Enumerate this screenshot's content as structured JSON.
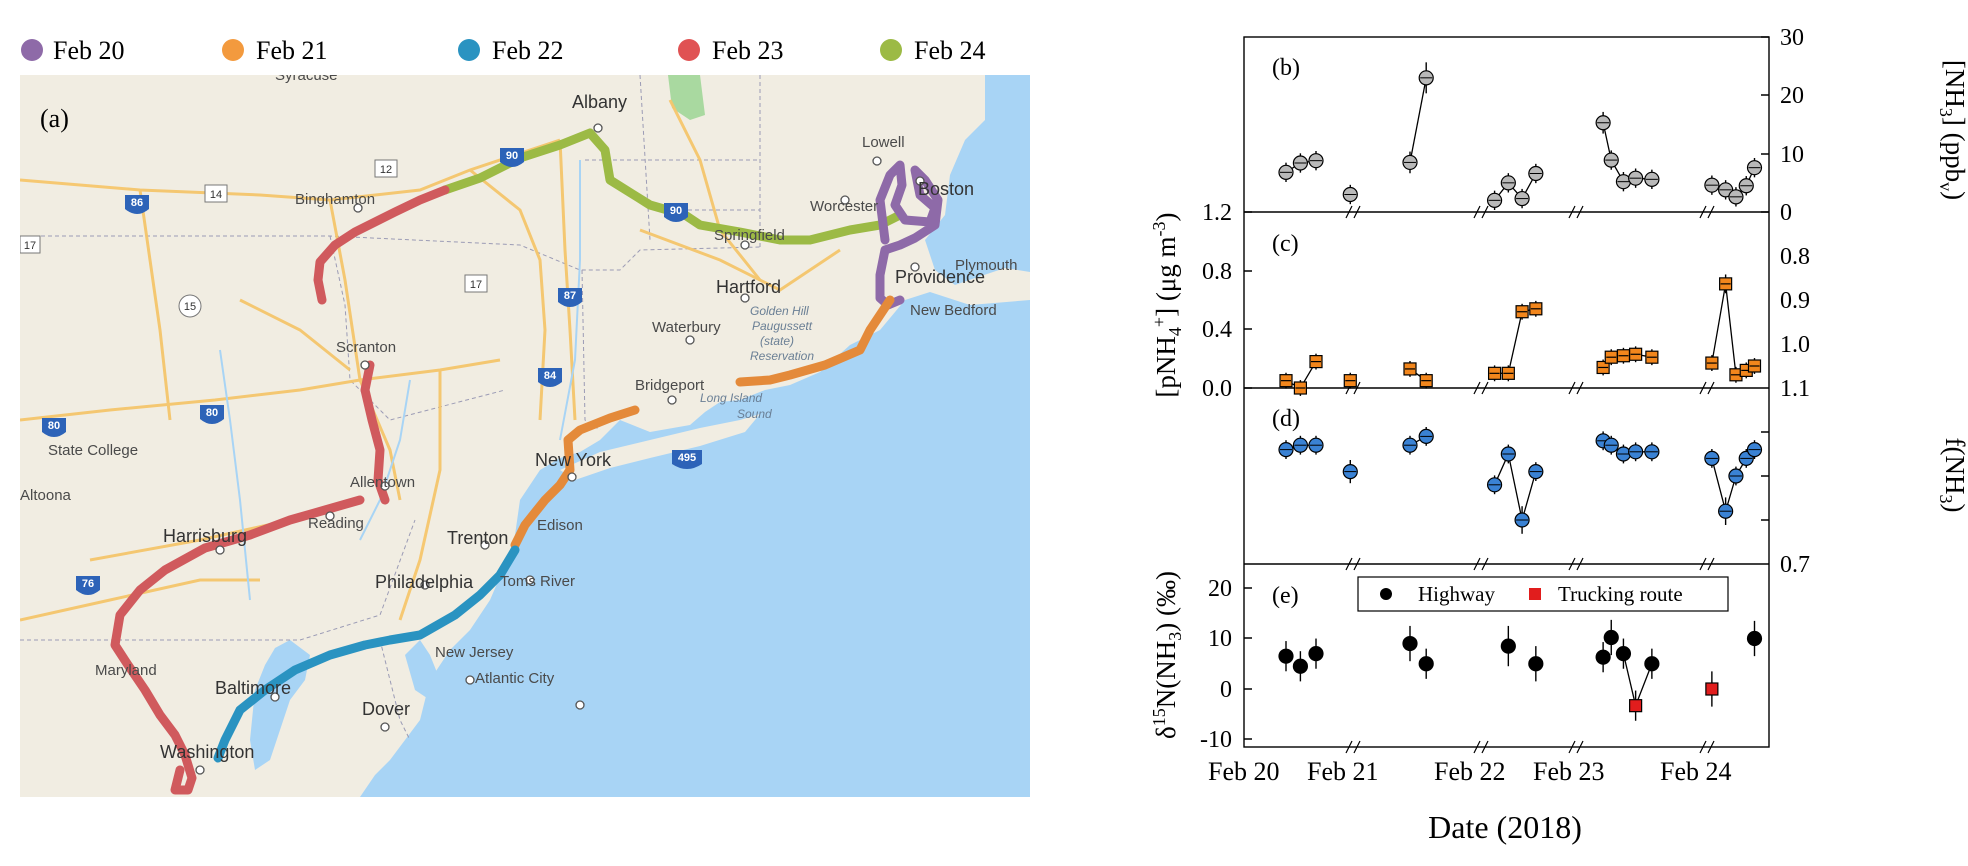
{
  "legend": [
    {
      "label": "Feb 20",
      "color": "#8e6aa8"
    },
    {
      "label": "Feb 21",
      "color": "#f39a3e"
    },
    {
      "label": "Feb 22",
      "color": "#2a93c1"
    },
    {
      "label": "Feb 23",
      "color": "#e05253"
    },
    {
      "label": "Feb 24",
      "color": "#9cba45"
    }
  ],
  "map": {
    "panel_label": "(a)",
    "cities": [
      {
        "name": "Syracuse"
      },
      {
        "name": "Albany"
      },
      {
        "name": "Lowell"
      },
      {
        "name": "Boston"
      },
      {
        "name": "Worcester"
      },
      {
        "name": "Springfield"
      },
      {
        "name": "Plymouth"
      },
      {
        "name": "Binghamton"
      },
      {
        "name": "Hartford"
      },
      {
        "name": "Providence"
      },
      {
        "name": "New Bedford"
      },
      {
        "name": "Waterbury"
      },
      {
        "name": "Scranton"
      },
      {
        "name": "Bridgeport"
      },
      {
        "name": "State College"
      },
      {
        "name": "New York"
      },
      {
        "name": "Allentown"
      },
      {
        "name": "Edison"
      },
      {
        "name": "Altoona"
      },
      {
        "name": "Reading"
      },
      {
        "name": "Harrisburg"
      },
      {
        "name": "Trenton"
      },
      {
        "name": "Philadelphia"
      },
      {
        "name": "Toms River"
      },
      {
        "name": "New Jersey"
      },
      {
        "name": "Maryland"
      },
      {
        "name": "Baltimore"
      },
      {
        "name": "Atlantic City"
      },
      {
        "name": "Dover"
      },
      {
        "name": "Washington"
      }
    ],
    "water_labels": [
      "Golden Hill",
      "Paugussett",
      "(state)",
      "Reservation",
      "Long Island",
      "Sound"
    ],
    "shields": [
      "86",
      "14",
      "12",
      "90",
      "17",
      "87",
      "90",
      "15",
      "17",
      "84",
      "80",
      "80",
      "495",
      "76"
    ]
  },
  "chart_data": [
    {
      "panel": "(b)",
      "type": "scatter",
      "ylabel": "[NH3] (ppbv)",
      "ylim": [
        0,
        30
      ],
      "yticks": [
        "0",
        "10",
        "20",
        "30"
      ],
      "axis_side": "right",
      "marker_color": "#b9b9b9",
      "groups": [
        {
          "segment": 0,
          "points": [
            {
              "x": 20.7,
              "y": 6.8,
              "err": 0.8
            },
            {
              "x": 20.82,
              "y": 8.4,
              "err": 0.8
            },
            {
              "x": 20.95,
              "y": 8.8,
              "err": 0.8
            }
          ]
        },
        {
          "segment": 0,
          "points": [
            {
              "x": 21.6,
              "y": 3.0,
              "err": 0.8
            }
          ]
        },
        {
          "segment": 1,
          "points": [
            {
              "x": 22.2,
              "y": 8.5,
              "err": 1.0
            },
            {
              "x": 22.38,
              "y": 23.0,
              "err": 1.8
            }
          ]
        },
        {
          "segment": 2,
          "points": [
            {
              "x": 23.05,
              "y": 2.0,
              "err": 0.8
            },
            {
              "x": 23.2,
              "y": 5.0,
              "err": 0.8
            },
            {
              "x": 23.35,
              "y": 2.3,
              "err": 0.8
            },
            {
              "x": 23.5,
              "y": 6.6,
              "err": 0.8
            }
          ]
        },
        {
          "segment": 3,
          "points": [
            {
              "x": 24.0,
              "y": 15.3,
              "err": 1.0
            },
            {
              "x": 24.1,
              "y": 8.9,
              "err": 0.8
            },
            {
              "x": 24.25,
              "y": 5.2,
              "err": 0.8
            },
            {
              "x": 24.4,
              "y": 5.8,
              "err": 0.8
            },
            {
              "x": 24.6,
              "y": 5.6,
              "err": 0.8
            }
          ]
        },
        {
          "segment": 4,
          "points": [
            {
              "x": 25.0,
              "y": 4.6,
              "err": 0.8
            },
            {
              "x": 25.2,
              "y": 3.8,
              "err": 0.8
            },
            {
              "x": 25.35,
              "y": 2.6,
              "err": 0.8
            },
            {
              "x": 25.5,
              "y": 4.5,
              "err": 0.8
            },
            {
              "x": 25.62,
              "y": 7.6,
              "err": 0.8
            }
          ]
        }
      ]
    },
    {
      "panel": "(c)",
      "type": "scatter",
      "ylabel": "[pNH4+] (µg m-3)",
      "ylim": [
        0,
        1.2
      ],
      "yticks": [
        "0.0",
        "0.4",
        "0.8",
        "1.2"
      ],
      "axis_side": "left",
      "marker_color": "#f2861c",
      "groups": [
        {
          "segment": 0,
          "points": [
            {
              "x": 20.7,
              "y": 0.05,
              "err": 0.02
            },
            {
              "x": 20.82,
              "y": 0.0,
              "err": 0.02
            },
            {
              "x": 20.95,
              "y": 0.18,
              "err": 0.02
            }
          ]
        },
        {
          "segment": 0,
          "points": [
            {
              "x": 21.6,
              "y": 0.05,
              "err": 0.02
            }
          ]
        },
        {
          "segment": 1,
          "points": [
            {
              "x": 22.2,
              "y": 0.13,
              "err": 0.02
            },
            {
              "x": 22.38,
              "y": 0.05,
              "err": 0.02
            }
          ]
        },
        {
          "segment": 2,
          "points": [
            {
              "x": 23.05,
              "y": 0.1,
              "err": 0.02
            },
            {
              "x": 23.2,
              "y": 0.1,
              "err": 0.02
            },
            {
              "x": 23.35,
              "y": 0.52,
              "err": 0.02
            },
            {
              "x": 23.5,
              "y": 0.54,
              "err": 0.02
            }
          ]
        },
        {
          "segment": 3,
          "points": [
            {
              "x": 24.0,
              "y": 0.14,
              "err": 0.02
            },
            {
              "x": 24.1,
              "y": 0.21,
              "err": 0.02
            },
            {
              "x": 24.25,
              "y": 0.22,
              "err": 0.02
            },
            {
              "x": 24.4,
              "y": 0.23,
              "err": 0.02
            },
            {
              "x": 24.6,
              "y": 0.21,
              "err": 0.02
            }
          ]
        },
        {
          "segment": 4,
          "points": [
            {
              "x": 25.0,
              "y": 0.17,
              "err": 0.02
            },
            {
              "x": 25.2,
              "y": 0.71,
              "err": 0.03
            },
            {
              "x": 25.35,
              "y": 0.09,
              "err": 0.02
            },
            {
              "x": 25.5,
              "y": 0.12,
              "err": 0.02
            },
            {
              "x": 25.62,
              "y": 0.15,
              "err": 0.02
            }
          ]
        }
      ]
    },
    {
      "panel": "(d)",
      "type": "scatter",
      "ylabel": "f(NH3)",
      "ylim": [
        0.7,
        1.1
      ],
      "yticks": [
        "0.7",
        "0.8",
        "0.9",
        "1.0",
        "1.1"
      ],
      "axis_side": "right",
      "marker_color": "#3a82d4",
      "groups": [
        {
          "segment": 0,
          "points": [
            {
              "x": 20.7,
              "y": 0.96,
              "err": 0.01
            },
            {
              "x": 20.82,
              "y": 0.97,
              "err": 0.01
            },
            {
              "x": 20.95,
              "y": 0.97,
              "err": 0.01
            }
          ]
        },
        {
          "segment": 0,
          "points": [
            {
              "x": 21.6,
              "y": 0.91,
              "err": 0.015
            }
          ]
        },
        {
          "segment": 1,
          "points": [
            {
              "x": 22.2,
              "y": 0.97,
              "err": 0.01
            },
            {
              "x": 22.38,
              "y": 0.99,
              "err": 0.01
            }
          ]
        },
        {
          "segment": 2,
          "points": [
            {
              "x": 23.05,
              "y": 0.88,
              "err": 0.01
            },
            {
              "x": 23.2,
              "y": 0.95,
              "err": 0.01
            },
            {
              "x": 23.35,
              "y": 0.8,
              "err": 0.02
            },
            {
              "x": 23.5,
              "y": 0.91,
              "err": 0.01
            }
          ]
        },
        {
          "segment": 3,
          "points": [
            {
              "x": 24.0,
              "y": 0.98,
              "err": 0.01
            },
            {
              "x": 24.1,
              "y": 0.97,
              "err": 0.01
            },
            {
              "x": 24.25,
              "y": 0.95,
              "err": 0.01
            },
            {
              "x": 24.4,
              "y": 0.955,
              "err": 0.01
            },
            {
              "x": 24.6,
              "y": 0.955,
              "err": 0.01
            }
          ]
        },
        {
          "segment": 4,
          "points": [
            {
              "x": 25.0,
              "y": 0.94,
              "err": 0.01
            },
            {
              "x": 25.2,
              "y": 0.82,
              "err": 0.02
            },
            {
              "x": 25.35,
              "y": 0.9,
              "err": 0.01
            },
            {
              "x": 25.5,
              "y": 0.94,
              "err": 0.01
            },
            {
              "x": 25.62,
              "y": 0.96,
              "err": 0.01
            }
          ]
        }
      ]
    },
    {
      "panel": "(e)",
      "type": "scatter",
      "ylabel": "δ15N(NH3) (‰)",
      "ylim": [
        -10,
        25
      ],
      "yticks": [
        "-10",
        "0",
        "10",
        "20"
      ],
      "axis_side": "left",
      "legend": [
        {
          "label": "Highway",
          "color": "#000000",
          "marker": "circle"
        },
        {
          "label": "Trucking route",
          "color": "#e11d1d",
          "marker": "square"
        }
      ],
      "series": [
        {
          "name": "Highway",
          "points": [
            {
              "x": 20.7,
              "y": 6.5,
              "err": 2.0
            },
            {
              "x": 20.82,
              "y": 4.5,
              "err": 2.0
            },
            {
              "x": 20.95,
              "y": 7.0,
              "err": 2.0
            },
            {
              "x": 22.2,
              "y": 9.0,
              "err": 2.5
            },
            {
              "x": 22.38,
              "y": 5.0,
              "err": 2.0
            },
            {
              "x": 23.2,
              "y": 8.5,
              "err": 3.0
            },
            {
              "x": 23.5,
              "y": 5.0,
              "err": 2.5
            },
            {
              "x": 24.0,
              "y": 6.3,
              "err": 2.0
            },
            {
              "x": 24.1,
              "y": 10.2,
              "err": 2.5
            },
            {
              "x": 24.25,
              "y": 7.0,
              "err": 2.0
            },
            {
              "x": 24.6,
              "y": 5.0,
              "err": 2.0
            },
            {
              "x": 25.62,
              "y": 10.0,
              "err": 2.5
            }
          ]
        },
        {
          "name": "Trucking route",
          "points": [
            {
              "x": 24.4,
              "y": -3.3,
              "err": 2.0
            },
            {
              "x": 25.0,
              "y": 0.0,
              "err": 2.5
            }
          ]
        }
      ],
      "connections": [
        [
          24.25,
          7.0,
          24.4,
          -3.3
        ],
        [
          24.4,
          -3.3,
          24.6,
          5.0
        ]
      ]
    }
  ],
  "xaxis": {
    "label": "Date (2018)",
    "ticks": [
      "Feb 20",
      "Feb 21",
      "Feb 22",
      "Feb 23",
      "Feb 24"
    ]
  }
}
